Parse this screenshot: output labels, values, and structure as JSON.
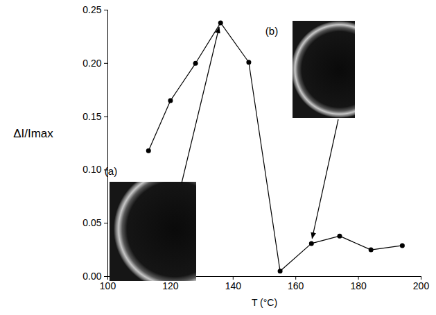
{
  "chart_data": {
    "type": "line",
    "x_label": "T (°C)",
    "y_label": "ΔI/Imax",
    "x": [
      113,
      120,
      128,
      136,
      145,
      155,
      165,
      174,
      184,
      194
    ],
    "values": [
      0.118,
      0.165,
      0.2,
      0.238,
      0.201,
      0.005,
      0.031,
      0.038,
      0.025,
      0.029
    ],
    "color": "#000000",
    "marker": "circle",
    "line_style": "solid",
    "xlim": [
      100,
      200
    ],
    "xticks": [
      100,
      120,
      140,
      160,
      180,
      200
    ],
    "ylim": [
      0,
      0.25
    ],
    "yticks": [
      {
        "value": 0,
        "label": "0.00"
      },
      {
        "value": 0.05,
        "label": "0.05"
      },
      {
        "value": 0.1,
        "label": "0.10"
      },
      {
        "value": 0.15,
        "label": "0.15"
      },
      {
        "value": 0.2,
        "label": "0.20"
      },
      {
        "value": 0.25,
        "label": "0.25"
      }
    ],
    "grid": false,
    "annotations": [
      {
        "text": "(a)",
        "x": 136,
        "y": 0.238
      },
      {
        "text": "(b)",
        "x": 165,
        "y": 0.031
      }
    ]
  }
}
